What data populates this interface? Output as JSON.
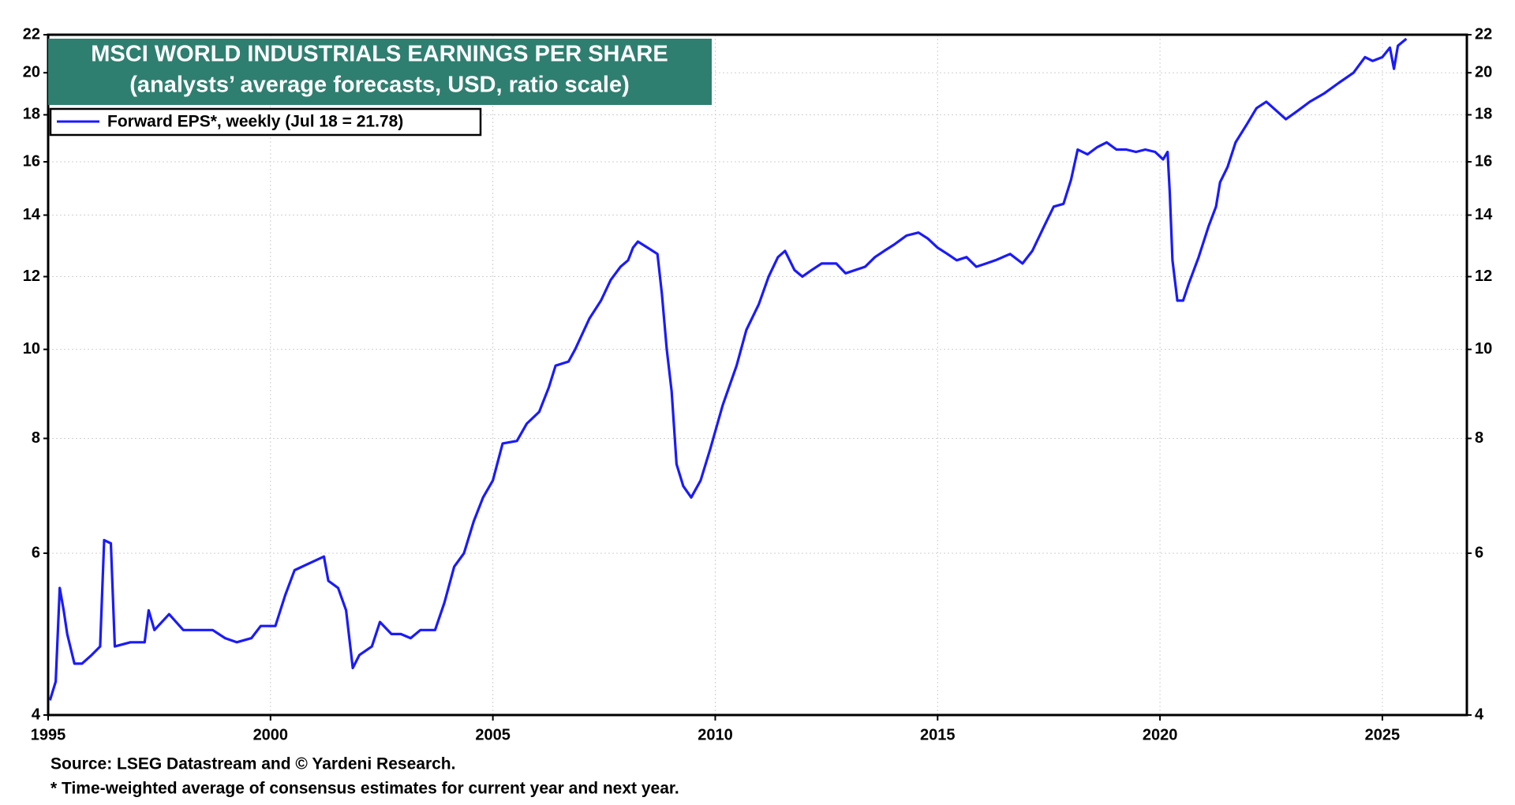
{
  "chart_data": {
    "type": "line",
    "title": "MSCI WORLD INDUSTRIALS EARNINGS PER SHARE",
    "subtitle": "(analysts’ average forecasts, USD, ratio scale)",
    "source": "Source: LSEG Datastream and © Yardeni Research.",
    "note": "* Time-weighted average of consensus estimates for current year and next year.",
    "yscale": "log",
    "grid": true,
    "legend": "top-left",
    "right_axis": true,
    "xlim": [
      1995,
      2026.9
    ],
    "xticks": [
      1995,
      2000,
      2005,
      2010,
      2015,
      2020,
      2025
    ],
    "ylim": [
      4,
      22
    ],
    "yticks": [
      4,
      6,
      8,
      10,
      12,
      14,
      16,
      18,
      20,
      22
    ],
    "x": [
      1995.04,
      1995.17,
      1995.26,
      1995.35,
      1995.43,
      1995.59,
      1995.76,
      1995.98,
      1996.17,
      1996.26,
      1996.41,
      1996.5,
      1996.85,
      1997.17,
      1997.26,
      1997.39,
      1997.72,
      1998.04,
      1998.37,
      1998.7,
      1998.98,
      1999.24,
      1999.57,
      1999.78,
      2000.11,
      2000.33,
      2000.54,
      2000.87,
      2001.2,
      2001.3,
      2001.52,
      2001.7,
      2001.85,
      2002.0,
      2002.28,
      2002.46,
      2002.72,
      2002.93,
      2003.15,
      2003.37,
      2003.7,
      2003.91,
      2004.13,
      2004.35,
      2004.57,
      2004.78,
      2005.0,
      2005.22,
      2005.54,
      2005.76,
      2006.04,
      2006.26,
      2006.41,
      2006.7,
      2006.85,
      2007.17,
      2007.43,
      2007.65,
      2007.87,
      2008.04,
      2008.15,
      2008.26,
      2008.48,
      2008.7,
      2008.8,
      2008.91,
      2009.02,
      2009.13,
      2009.28,
      2009.46,
      2009.67,
      2009.89,
      2010.17,
      2010.48,
      2010.7,
      2010.98,
      2011.2,
      2011.41,
      2011.57,
      2011.78,
      2011.96,
      2012.17,
      2012.39,
      2012.72,
      2012.93,
      2013.15,
      2013.37,
      2013.59,
      2013.8,
      2014.02,
      2014.3,
      2014.57,
      2014.78,
      2015.0,
      2015.22,
      2015.43,
      2015.65,
      2015.87,
      2016.09,
      2016.3,
      2016.63,
      2016.91,
      2017.13,
      2017.39,
      2017.61,
      2017.83,
      2018.0,
      2018.15,
      2018.37,
      2018.59,
      2018.8,
      2019.02,
      2019.24,
      2019.46,
      2019.67,
      2019.89,
      2020.07,
      2020.17,
      2020.22,
      2020.28,
      2020.39,
      2020.52,
      2020.65,
      2020.87,
      2021.09,
      2021.26,
      2021.35,
      2021.52,
      2021.7,
      2021.96,
      2022.17,
      2022.39,
      2022.61,
      2022.83,
      2023.04,
      2023.37,
      2023.7,
      2024.02,
      2024.35,
      2024.61,
      2024.78,
      2025.0,
      2025.17,
      2025.26,
      2025.35,
      2025.54
    ],
    "series": [
      {
        "name": "Forward EPS*, weekly (Jul 18 = 21.78)",
        "color": "#1a1aff",
        "values": [
          4.15,
          4.35,
          5.5,
          5.2,
          4.9,
          4.55,
          4.55,
          4.65,
          4.75,
          6.2,
          6.15,
          4.75,
          4.8,
          4.8,
          5.2,
          4.95,
          5.15,
          4.95,
          4.95,
          4.95,
          4.85,
          4.8,
          4.85,
          5.0,
          5.0,
          5.4,
          5.75,
          5.85,
          5.95,
          5.6,
          5.5,
          5.2,
          4.5,
          4.65,
          4.75,
          5.05,
          4.9,
          4.9,
          4.85,
          4.95,
          4.95,
          5.3,
          5.8,
          6.0,
          6.5,
          6.9,
          7.2,
          7.9,
          7.95,
          8.3,
          8.55,
          9.1,
          9.6,
          9.7,
          10.0,
          10.8,
          11.3,
          11.9,
          12.3,
          12.5,
          12.9,
          13.1,
          12.9,
          12.7,
          11.5,
          10.0,
          9.0,
          7.5,
          7.1,
          6.9,
          7.2,
          7.8,
          8.7,
          9.6,
          10.5,
          11.2,
          12.0,
          12.6,
          12.8,
          12.2,
          12.0,
          12.2,
          12.4,
          12.4,
          12.1,
          12.2,
          12.3,
          12.6,
          12.8,
          13.0,
          13.3,
          13.4,
          13.2,
          12.9,
          12.7,
          12.5,
          12.6,
          12.3,
          12.4,
          12.5,
          12.7,
          12.4,
          12.8,
          13.6,
          14.3,
          14.4,
          15.3,
          16.5,
          16.3,
          16.6,
          16.8,
          16.5,
          16.5,
          16.4,
          16.5,
          16.4,
          16.1,
          16.4,
          14.8,
          12.5,
          11.3,
          11.3,
          11.8,
          12.6,
          13.6,
          14.3,
          15.2,
          15.8,
          16.8,
          17.6,
          18.3,
          18.6,
          18.2,
          17.8,
          18.1,
          18.6,
          19.0,
          19.5,
          20.0,
          20.8,
          20.6,
          20.8,
          21.3,
          20.2,
          21.4,
          21.78
        ]
      }
    ]
  }
}
